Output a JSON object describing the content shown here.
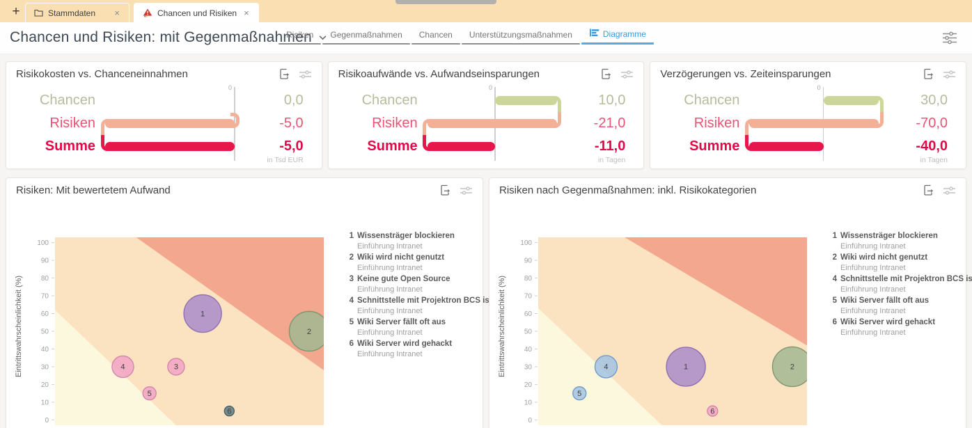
{
  "window_tabs": {
    "new_tab_label": "+",
    "tabs": [
      {
        "label": "Stammdaten",
        "icon": "folder-icon",
        "active": false,
        "close_label": "×"
      },
      {
        "label": "Chancen und Risiken",
        "icon": "risk-warning-icon",
        "active": true,
        "close_label": "×"
      }
    ]
  },
  "header": {
    "title": "Chancen und Risiken: mit Gegenmaßnahmen",
    "tabs": [
      {
        "label": "Risiken",
        "active": false
      },
      {
        "label": "Gegenmaßnahmen",
        "active": false
      },
      {
        "label": "Chancen",
        "active": false
      },
      {
        "label": "Unterstützungsmaßnahmen",
        "active": false
      },
      {
        "label": "Diagramme",
        "active": true,
        "icon": "bar-chart-icon"
      }
    ]
  },
  "colors": {
    "accent_blue": "#2d9ce5",
    "tab_bar_bg": "#f9dfb2",
    "kpi_bars": {
      "chancen": "#ccd698",
      "risiken": "#f4b097",
      "summe": "#e7174b"
    },
    "kpi_text": {
      "chancen": "#b5bc9c",
      "risiken": "#eb5273",
      "summe": "#e20746",
      "unit": "#bdbdbd",
      "zero": "#a8a8a8",
      "zero_line": "#cecece"
    },
    "zones": {
      "low": "#fcf8dd",
      "mid": "#fbe2c0",
      "high": "#f2a78e"
    },
    "bubbles": {
      "purple": {
        "fill": "#a98cc9",
        "stroke": "#8f6fb2"
      },
      "green": {
        "fill": "#a2b792",
        "stroke": "#7f9770"
      },
      "pink": {
        "fill": "#f1a5c5",
        "stroke": "#d385ac"
      },
      "slate": {
        "fill": "#5e7b83",
        "stroke": "#47626a"
      },
      "blue": {
        "fill": "#a2c3e3",
        "stroke": "#6f9ac9"
      }
    }
  },
  "chart_data": [
    {
      "type": "bar",
      "variant": "horizontal-waterfall",
      "title": "Risikokosten vs. Chanceneinnahmen",
      "categories": [
        "Chancen",
        "Risiken",
        "Summe"
      ],
      "values": [
        0,
        -5,
        -5
      ],
      "value_labels": [
        "0,0",
        "-5,0",
        "-5,0"
      ],
      "unit": "in Tsd EUR",
      "zero_label": "0"
    },
    {
      "type": "bar",
      "variant": "horizontal-waterfall",
      "title": "Risikoaufwände vs. Aufwandseinsparungen",
      "categories": [
        "Chancen",
        "Risiken",
        "Summe"
      ],
      "values": [
        10,
        -21,
        -11
      ],
      "value_labels": [
        "10,0",
        "-21,0",
        "-11,0"
      ],
      "unit": "in Tagen",
      "zero_label": "0"
    },
    {
      "type": "bar",
      "variant": "horizontal-waterfall",
      "title": "Verzögerungen vs. Zeiteinsparungen",
      "categories": [
        "Chancen",
        "Risiken",
        "Summe"
      ],
      "values": [
        30,
        -70,
        -40
      ],
      "value_labels": [
        "30,0",
        "-70,0",
        "-40,0"
      ],
      "unit": "in Tagen",
      "zero_label": "0"
    },
    {
      "type": "scatter",
      "variant": "bubble-risk-matrix",
      "title": "Risiken: Mit bewertetem Aufwand",
      "xlabel": "",
      "ylabel": "Eintrittswahrscheinlichkeit (%)",
      "xlim": [
        0.45,
        10.55
      ],
      "ylim": [
        -3,
        103
      ],
      "xticks": [
        1,
        2,
        3,
        4,
        5,
        6,
        7,
        8,
        9,
        10
      ],
      "yticks": [
        0,
        10,
        20,
        30,
        40,
        50,
        60,
        70,
        80,
        90,
        100
      ],
      "zones": {
        "low_poly": [
          [
            0.45,
            62
          ],
          [
            0.45,
            -3
          ],
          [
            5.0,
            -3
          ]
        ],
        "high_poly": [
          [
            3.5,
            103
          ],
          [
            10.55,
            103
          ],
          [
            10.55,
            28
          ]
        ]
      },
      "points": [
        {
          "id": "1",
          "x": 6,
          "y": 60,
          "r": 27,
          "color": "purple"
        },
        {
          "id": "2",
          "x": 10,
          "y": 50,
          "r": 28.5,
          "color": "green"
        },
        {
          "id": "3",
          "x": 5,
          "y": 30,
          "r": 12,
          "color": "pink"
        },
        {
          "id": "4",
          "x": 3,
          "y": 30,
          "r": 15.5,
          "color": "pink"
        },
        {
          "id": "5",
          "x": 4,
          "y": 15,
          "r": 9.5,
          "color": "pink"
        },
        {
          "id": "6",
          "x": 7,
          "y": 5,
          "r": 7,
          "color": "slate"
        }
      ],
      "legend": [
        {
          "id": "1",
          "name": "Wissensträger blockieren",
          "sub": "Einführung Intranet"
        },
        {
          "id": "2",
          "name": "Wiki wird nicht genutzt",
          "sub": "Einführung Intranet"
        },
        {
          "id": "3",
          "name": "Keine gute Open Source",
          "sub": "Einführung Intranet"
        },
        {
          "id": "4",
          "name": "Schnittstelle mit Projektron BCS is...",
          "sub": "Einführung Intranet"
        },
        {
          "id": "5",
          "name": "Wiki Server fällt oft aus",
          "sub": "Einführung Intranet"
        },
        {
          "id": "6",
          "name": "Wiki Server wird gehackt",
          "sub": "Einführung Intranet"
        }
      ]
    },
    {
      "type": "scatter",
      "variant": "bubble-risk-matrix",
      "title": "Risiken nach Gegenmaßnahmen: inkl. Risikokategorien",
      "xlabel": "",
      "ylabel": "Eintrittswahrscheinlichkeit (%)",
      "xlim": [
        0.45,
        10.55
      ],
      "ylim": [
        -3,
        103
      ],
      "xticks": [
        1,
        2,
        3,
        4,
        5,
        6,
        7,
        8,
        9,
        10
      ],
      "yticks": [
        0,
        10,
        20,
        30,
        40,
        50,
        60,
        70,
        80,
        90,
        100
      ],
      "zones": {
        "low_poly": [
          [
            0.45,
            63
          ],
          [
            0.45,
            -3
          ],
          [
            5.1,
            -3
          ]
        ],
        "high_poly": [
          [
            3.7,
            103
          ],
          [
            10.55,
            103
          ],
          [
            10.55,
            42
          ]
        ]
      },
      "points": [
        {
          "id": "4",
          "x": 3,
          "y": 30,
          "r": 16,
          "color": "blue"
        },
        {
          "id": "5",
          "x": 2,
          "y": 15,
          "r": 9.5,
          "color": "blue"
        },
        {
          "id": "1",
          "x": 6,
          "y": 30,
          "r": 28,
          "color": "purple"
        },
        {
          "id": "6",
          "x": 7,
          "y": 5,
          "r": 7.5,
          "color": "pink"
        },
        {
          "id": "2",
          "x": 10,
          "y": 30,
          "r": 28.5,
          "color": "green"
        }
      ],
      "legend": [
        {
          "id": "1",
          "name": "Wissensträger blockieren",
          "sub": "Einführung Intranet"
        },
        {
          "id": "2",
          "name": "Wiki wird nicht genutzt",
          "sub": "Einführung Intranet"
        },
        {
          "id": "4",
          "name": "Schnittstelle mit Projektron BCS is...",
          "sub": "Einführung Intranet"
        },
        {
          "id": "5",
          "name": "Wiki Server fällt oft aus",
          "sub": "Einführung Intranet"
        },
        {
          "id": "6",
          "name": "Wiki Server wird gehackt",
          "sub": "Einführung Intranet"
        }
      ]
    }
  ]
}
